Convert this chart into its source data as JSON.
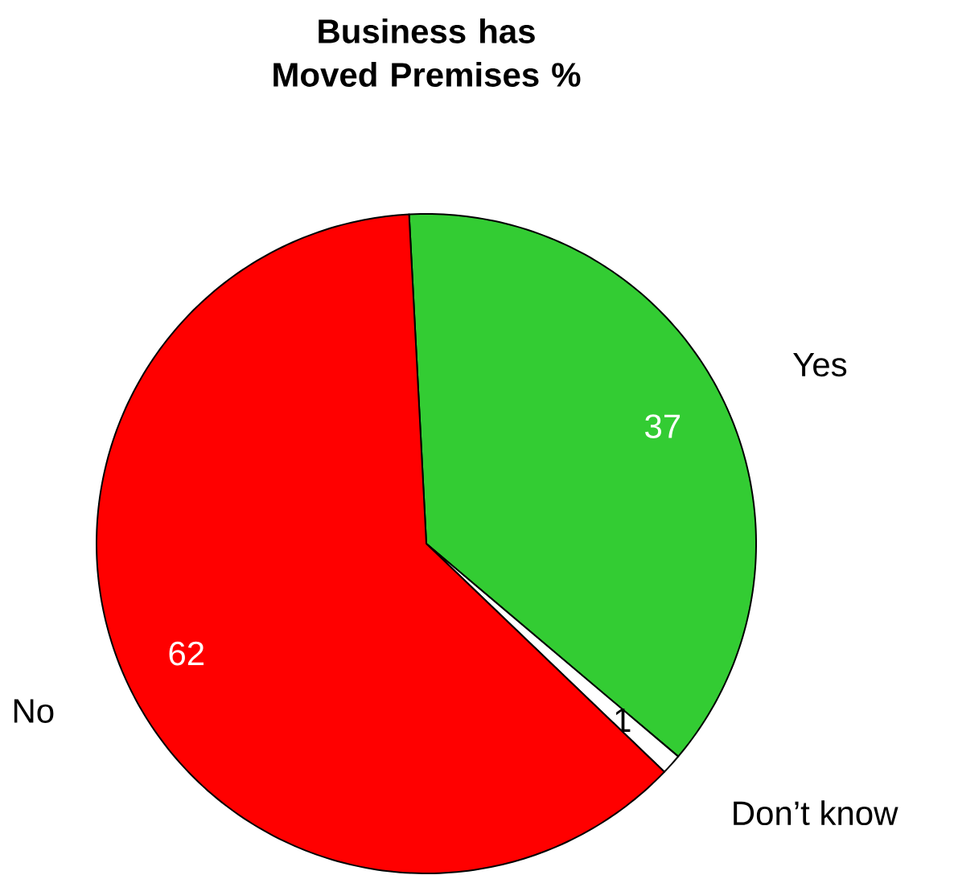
{
  "chart_data": {
    "type": "pie",
    "title": "Business has Moved Premises %",
    "categories": [
      "Yes",
      "Don’t know",
      "No"
    ],
    "values": [
      37,
      1,
      62
    ],
    "colors": [
      "#33cc33",
      "#ffffff",
      "#ff0000"
    ],
    "data_labels": true
  }
}
